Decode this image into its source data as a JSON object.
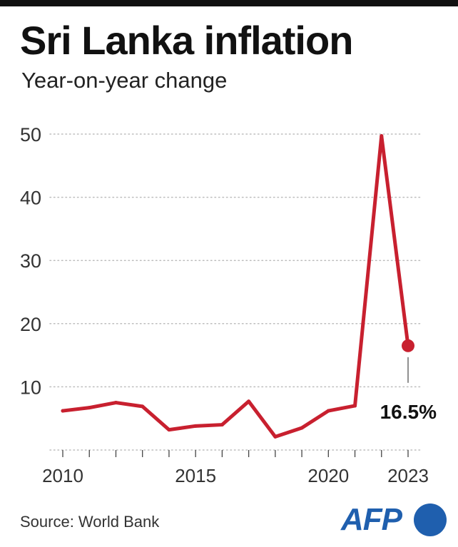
{
  "header": {
    "title": "Sri Lanka inflation",
    "subtitle": "Year-on-year change"
  },
  "footer": {
    "source": "Source: World Bank",
    "logo_text": "AFP"
  },
  "colors": {
    "line": "#c8202f",
    "grid": "#bdbdbd",
    "logo": "#1f5fae",
    "axis": "#444444"
  },
  "chart_data": {
    "type": "line",
    "title": "Sri Lanka inflation",
    "subtitle": "Year-on-year change",
    "xlabel": "",
    "ylabel": "",
    "x": [
      2010,
      2011,
      2012,
      2013,
      2014,
      2015,
      2016,
      2017,
      2018,
      2019,
      2020,
      2021,
      2022,
      2023
    ],
    "series": [
      {
        "values": [
          6.2,
          6.7,
          7.5,
          6.9,
          3.2,
          3.8,
          4.0,
          7.7,
          2.1,
          3.5,
          6.2,
          7.0,
          49.7,
          16.5
        ]
      }
    ],
    "ylim": [
      0,
      50
    ],
    "xlim": [
      2010,
      2023
    ],
    "yticks": [
      10,
      20,
      30,
      40,
      50
    ],
    "xtick_labels": [
      2010,
      2015,
      2020,
      2023
    ],
    "grid": "horizontal-dotted",
    "annotation": {
      "x": 2023,
      "label": "16.5%"
    }
  }
}
